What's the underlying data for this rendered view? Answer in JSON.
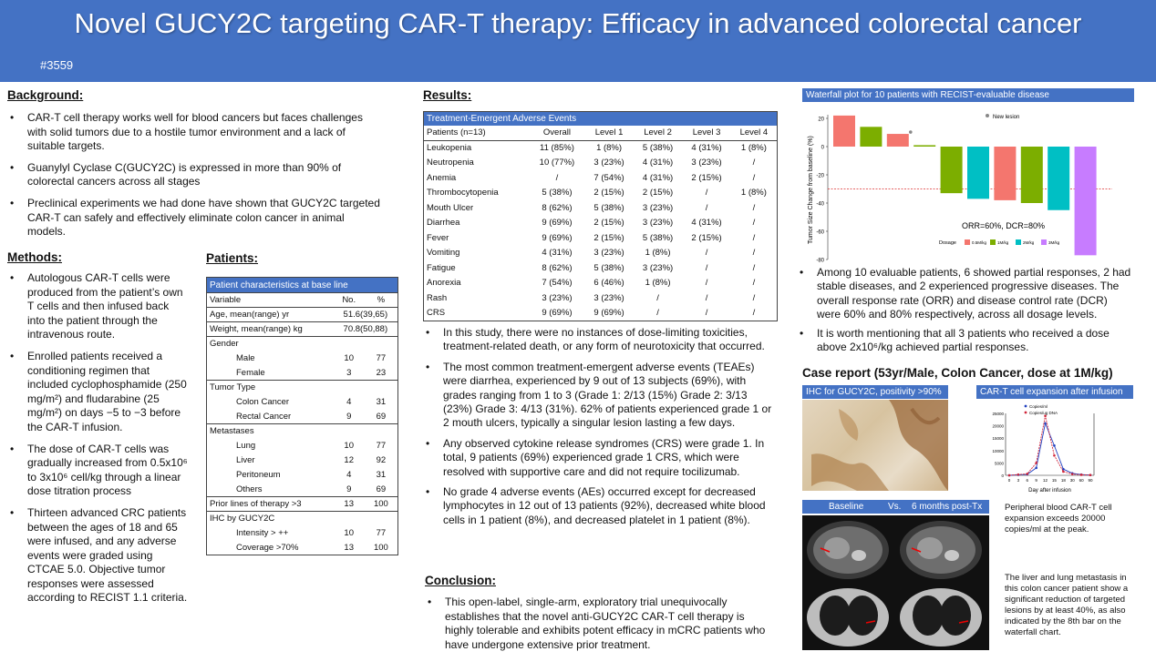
{
  "header": {
    "title": "Novel GUCY2C targeting CAR-T therapy: Efficacy in advanced colorectal cancer",
    "code": "#3559",
    "bg": "#4472c4"
  },
  "background": {
    "heading": "Background:",
    "bullets": [
      "CAR-T cell therapy works well for blood cancers but faces challenges with solid tumors due to a hostile tumor environment and a lack of suitable targets.",
      "Guanylyl Cyclase C(GUCY2C) is expressed in more than 90% of colorectal cancers across all stages",
      "Preclinical experiments we had done have shown that GUCY2C targeted CAR-T can safely and effectively eliminate colon cancer in animal models."
    ]
  },
  "methods": {
    "heading": "Methods:",
    "bullets": [
      "Autologous CAR-T cells were produced from the patient’s own T cells and then infused back into the patient through the intravenous route.",
      "Enrolled patients received a conditioning regimen that included cyclophosphamide (250 mg/m²) and fludarabine (25 mg/m²) on days −5 to −3 before the CAR-T infusion.",
      "The dose of CAR-T cells was gradually increased from 0.5x10⁶ to 3x10⁶ cell/kg through a linear dose titration process",
      "Thirteen advanced CRC patients between the ages of 18 and 65 were infused, and any adverse events were graded using CTCAE 5.0. Objective tumor responses were assessed according to RECIST 1.1 criteria."
    ]
  },
  "patients": {
    "heading": "Patients:",
    "box_title": "Patient characteristics at base line",
    "col_variable": "Variable",
    "col_no": "No.",
    "col_pct": "%",
    "age_label": "Age, mean(range) yr",
    "age_value": "51.6(39,65)",
    "weight_label": "Weight, mean(range)  kg",
    "weight_value": "70.8(50,88)",
    "gender_label": "Gender",
    "male": [
      "Male",
      "10",
      "77"
    ],
    "female": [
      "Female",
      "3",
      "23"
    ],
    "tumor_label": "Tumor Type",
    "colon": [
      "Colon Cancer",
      "4",
      "31"
    ],
    "rectal": [
      "Rectal Cancer",
      "9",
      "69"
    ],
    "meta_label": "Metastases",
    "lung": [
      "Lung",
      "10",
      "77"
    ],
    "liver": [
      "Liver",
      "12",
      "92"
    ],
    "peritoneum": [
      "Peritoneum",
      "4",
      "31"
    ],
    "others": [
      "Others",
      "9",
      "69"
    ],
    "prior": [
      "Prior lines of therapy >3",
      "13",
      "100"
    ],
    "ihc_label": "IHC by GUCY2C",
    "intensity": [
      "Intensity > ++",
      "10",
      "77"
    ],
    "coverage": [
      "Coverage >70%",
      "13",
      "100"
    ]
  },
  "results": {
    "heading": "Results:",
    "table_title": "Treatment-Emergent Adverse Events",
    "columns": [
      "Patients (n=13)",
      "Overall",
      "Level 1",
      "Level 2",
      "Level 3",
      "Level 4"
    ],
    "rows": [
      [
        "Leukopenia",
        "11 (85%)",
        "1 (8%)",
        "5 (38%)",
        "4 (31%)",
        "1 (8%)"
      ],
      [
        "Neutropenia",
        "10 (77%)",
        "3 (23%)",
        "4 (31%)",
        "3 (23%)",
        "/"
      ],
      [
        "Anemia",
        "/",
        "7 (54%)",
        "4 (31%)",
        "2 (15%)",
        "/"
      ],
      [
        "Thrombocytopenia",
        "5 (38%)",
        "2 (15%)",
        "2 (15%)",
        "/",
        "1 (8%)"
      ],
      [
        "Mouth Ulcer",
        "8 (62%)",
        "5 (38%)",
        "3 (23%)",
        "/",
        "/"
      ],
      [
        "Diarrhea",
        "9 (69%)",
        "2 (15%)",
        "3 (23%)",
        "4 (31%)",
        "/"
      ],
      [
        "Fever",
        "9 (69%)",
        "2 (15%)",
        "5 (38%)",
        "2 (15%)",
        "/"
      ],
      [
        "Vomiting",
        "4 (31%)",
        "3 (23%)",
        "1 (8%)",
        "/",
        "/"
      ],
      [
        "Fatigue",
        "8 (62%)",
        "5 (38%)",
        "3 (23%)",
        "/",
        "/"
      ],
      [
        "Anorexia",
        "7 (54%)",
        "6 (46%)",
        "1 (8%)",
        "/",
        "/"
      ],
      [
        "Rash",
        "3 (23%)",
        "3 (23%)",
        "/",
        "/",
        "/"
      ],
      [
        "CRS",
        "9 (69%)",
        "9 (69%)",
        "/",
        "/",
        "/"
      ]
    ],
    "bullets": [
      "In this study, there were no instances of dose-limiting toxicities, treatment-related death, or any form of neurotoxicity that occurred.",
      "The most common treatment-emergent adverse events (TEAEs) were diarrhea, experienced by 9 out of 13 subjects (69%), with grades ranging from 1 to 3 (Grade 1: 2/13 (15%) Grade 2: 3/13 (23%) Grade 3: 4/13 (31%). 62% of patients experienced grade 1 or 2 mouth ulcers, typically a singular lesion lasting a few days.",
      "Any observed cytokine release syndromes (CRS) were grade 1. In total, 9 patients (69%) experienced grade 1 CRS, which were resolved with supportive care and did not require tocilizumab.",
      "No grade 4 adverse events (AEs) occurred except for decreased lymphocytes in 12 out of 13 patients (92%), decreased white blood cells in 1 patient (8%), and decreased platelet in 1 patient (8%)."
    ]
  },
  "conclusion": {
    "heading": "Conclusion:",
    "bullets": [
      "This open-label, single-arm, exploratory trial unequivocally establishes that the novel anti-GUCY2C CAR-T cell therapy is highly tolerable and exhibits potent efficacy in mCRC patients who have undergone extensive prior treatment."
    ]
  },
  "waterfall": {
    "title": "Waterfall plot for 10 patients with RECIST-evaluable disease",
    "ylabel": "Tumor Size Change from baseline (%)",
    "legend_new": "New lesion",
    "annotation": "ORR=60%, DCR=80%",
    "dosage_label": "Dosage",
    "bullets": [
      "Among 10 evaluable patients, 6 showed partial responses, 2 had stable diseases, and 2 experienced progressive diseases. The overall response rate (ORR) and disease control rate (DCR) were 60% and 80% respectively, across all dosage levels.",
      "It is worth mentioning that all 3 patients who received a dose above 2x10⁶/kg achieved partial responses."
    ]
  },
  "chart_data": [
    {
      "type": "bar",
      "title": "Waterfall plot for 10 patients with RECIST-evaluable disease",
      "ylabel": "Tumor Size Change from baseline (%)",
      "ylim": [
        -80,
        20
      ],
      "yticks": [
        "20",
        "0",
        "-20",
        "-40",
        "-60",
        "-80"
      ],
      "threshold": -30,
      "doses": [
        "0.5M/kg",
        "1M/kg",
        "2M/kg",
        "3M/kg"
      ],
      "dose_colors": [
        "#f4766e",
        "#7cae00",
        "#00bfc4",
        "#c77cff"
      ],
      "values": [
        22,
        14,
        9,
        1,
        -33,
        -37,
        -38,
        -40,
        -45,
        -77
      ],
      "dose_index": [
        0,
        1,
        0,
        1,
        1,
        2,
        0,
        1,
        2,
        3
      ],
      "new_lesion_bar": 2
    },
    {
      "type": "line",
      "title": "CAR-T cell expansion after infusion",
      "xlabel": "Day after infusion",
      "x": [
        0,
        3,
        6,
        9,
        12,
        15,
        18,
        30,
        60,
        90
      ],
      "series": [
        {
          "name": "Copies/ml",
          "values": [
            0,
            200,
            400,
            3000,
            21000,
            12000,
            2500,
            800,
            300,
            100
          ]
        },
        {
          "name": "Copies/ug DNA",
          "values": [
            0,
            300,
            600,
            5000,
            24000,
            8000,
            1500,
            500,
            200,
            100
          ]
        }
      ]
    }
  ],
  "case": {
    "heading": "Case report (53yr/Male, Colon Cancer, dose at 1M/kg)",
    "ihc_label": "IHC for GUCY2C, positivity >90%",
    "expansion_label": "CAR-T cell expansion after infusion",
    "baseline": "Baseline",
    "vs": "Vs.",
    "post": "6 months post-Tx",
    "peak_text": "Peripheral blood CAR-T cell expansion exceeds  20000 copies/ml at the peak.",
    "liver_text": "The liver and lung metastasis in this colon cancer patient show a significant reduction of targeted lesions by at least 40%, as also indicated by the 8th bar on the waterfall chart."
  }
}
